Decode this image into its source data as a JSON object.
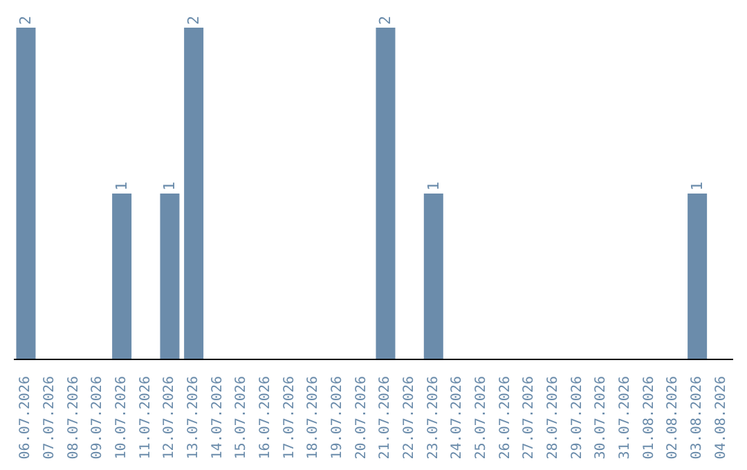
{
  "chart_data": {
    "type": "bar",
    "categories": [
      "06.07.2026",
      "07.07.2026",
      "08.07.2026",
      "09.07.2026",
      "10.07.2026",
      "11.07.2026",
      "12.07.2026",
      "13.07.2026",
      "14.07.2026",
      "15.07.2026",
      "16.07.2026",
      "17.07.2026",
      "18.07.2026",
      "19.07.2026",
      "20.07.2026",
      "21.07.2026",
      "22.07.2026",
      "23.07.2026",
      "24.07.2026",
      "25.07.2026",
      "26.07.2026",
      "27.07.2026",
      "28.07.2026",
      "29.07.2026",
      "30.07.2026",
      "31.07.2026",
      "01.08.2026",
      "02.08.2026",
      "03.08.2026",
      "04.08.2026"
    ],
    "values": [
      2,
      0,
      0,
      0,
      1,
      0,
      1,
      2,
      0,
      0,
      0,
      0,
      0,
      0,
      0,
      2,
      0,
      1,
      0,
      0,
      0,
      0,
      0,
      0,
      0,
      0,
      0,
      0,
      1,
      0
    ],
    "value_labels": [
      "2",
      null,
      null,
      null,
      "1",
      null,
      "1",
      "2",
      null,
      null,
      null,
      null,
      null,
      null,
      null,
      "2",
      null,
      "1",
      null,
      null,
      null,
      null,
      null,
      null,
      null,
      null,
      null,
      null,
      "1",
      null
    ],
    "color": "#6b8cab",
    "grid": false,
    "legend": false
  }
}
